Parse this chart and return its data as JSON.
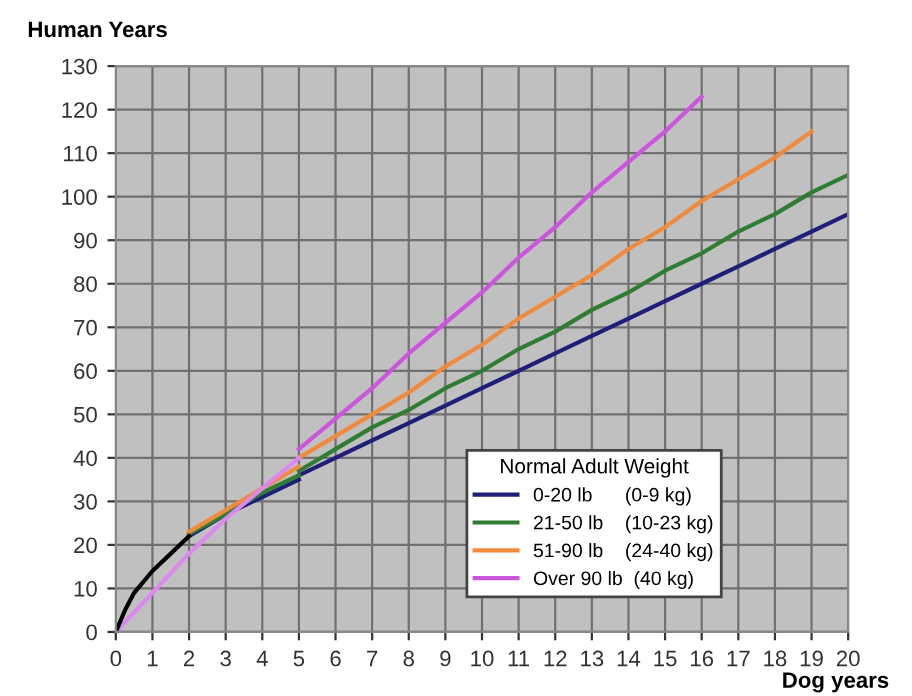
{
  "chart_data": {
    "type": "line",
    "xlabel": "Dog years",
    "ylabel": "Human Years",
    "legend_title": "Normal Adult Weight",
    "legend": "bottom right",
    "grid": true,
    "marker": "none",
    "line_style": "solid",
    "xlim": [
      0,
      20
    ],
    "xticks": [
      0,
      1,
      2,
      3,
      4,
      5,
      6,
      7,
      8,
      9,
      10,
      11,
      12,
      13,
      14,
      15,
      16,
      17,
      18,
      19,
      20
    ],
    "ylim": [
      0,
      130
    ],
    "yticks": [
      0,
      10,
      20,
      30,
      40,
      50,
      60,
      70,
      80,
      90,
      100,
      110,
      120,
      130
    ],
    "series": [
      {
        "name": "0-20 lb      (0-9 kg)",
        "color": "#1f1f7a",
        "x": [
          5,
          6,
          7,
          8,
          9,
          10,
          11,
          12,
          13,
          14,
          15,
          16,
          17,
          18,
          19,
          20
        ],
        "values": [
          36,
          40,
          44,
          48,
          52,
          56,
          60,
          64,
          68,
          72,
          76,
          80,
          84,
          88,
          92,
          96
        ]
      },
      {
        "name": "21-50 lb    (10-23 kg)",
        "color": "#2e7d32",
        "x": [
          5,
          6,
          7,
          8,
          9,
          10,
          11,
          12,
          13,
          14,
          15,
          16,
          17,
          18,
          19,
          20
        ],
        "values": [
          37,
          42,
          47,
          51,
          56,
          60,
          65,
          69,
          74,
          78,
          83,
          87,
          92,
          96,
          101,
          105
        ]
      },
      {
        "name": "51-90 lb    (24-40 kg)",
        "color": "#f08a3c",
        "x": [
          5,
          6,
          7,
          8,
          9,
          10,
          11,
          12,
          13,
          14,
          15,
          16,
          17,
          18,
          19
        ],
        "values": [
          40,
          45,
          50,
          55,
          61,
          66,
          72,
          77,
          82,
          88,
          93,
          99,
          104,
          109,
          115
        ]
      },
      {
        "name": "Over 90 lb  (40 kg)",
        "color": "#cc55dd",
        "x": [
          5,
          6,
          7,
          8,
          9,
          10,
          11,
          12,
          13,
          14,
          15,
          16
        ],
        "values": [
          42,
          49,
          56,
          64,
          71,
          78,
          86,
          93,
          101,
          108,
          115,
          123
        ]
      },
      {
        "color": "#1f1f7a",
        "x": [
          2,
          3,
          4,
          5
        ],
        "values": [
          22,
          27,
          31,
          35
        ]
      },
      {
        "color": "#2e7d32",
        "x": [
          2,
          3,
          4,
          5
        ],
        "values": [
          22.5,
          27,
          32,
          36
        ]
      },
      {
        "color": "#f08a3c",
        "x": [
          2,
          3,
          4,
          5
        ],
        "values": [
          23,
          28,
          33,
          38
        ]
      },
      {
        "color": "#dd88ee",
        "x": [
          0,
          1,
          2,
          3,
          4,
          5
        ],
        "values": [
          0,
          9,
          18,
          26,
          33,
          40
        ]
      },
      {
        "color": "#000000",
        "x": [
          0,
          0.25,
          0.5,
          1,
          1.5,
          2
        ],
        "values": [
          0,
          5,
          9,
          14,
          18,
          22
        ]
      }
    ]
  }
}
